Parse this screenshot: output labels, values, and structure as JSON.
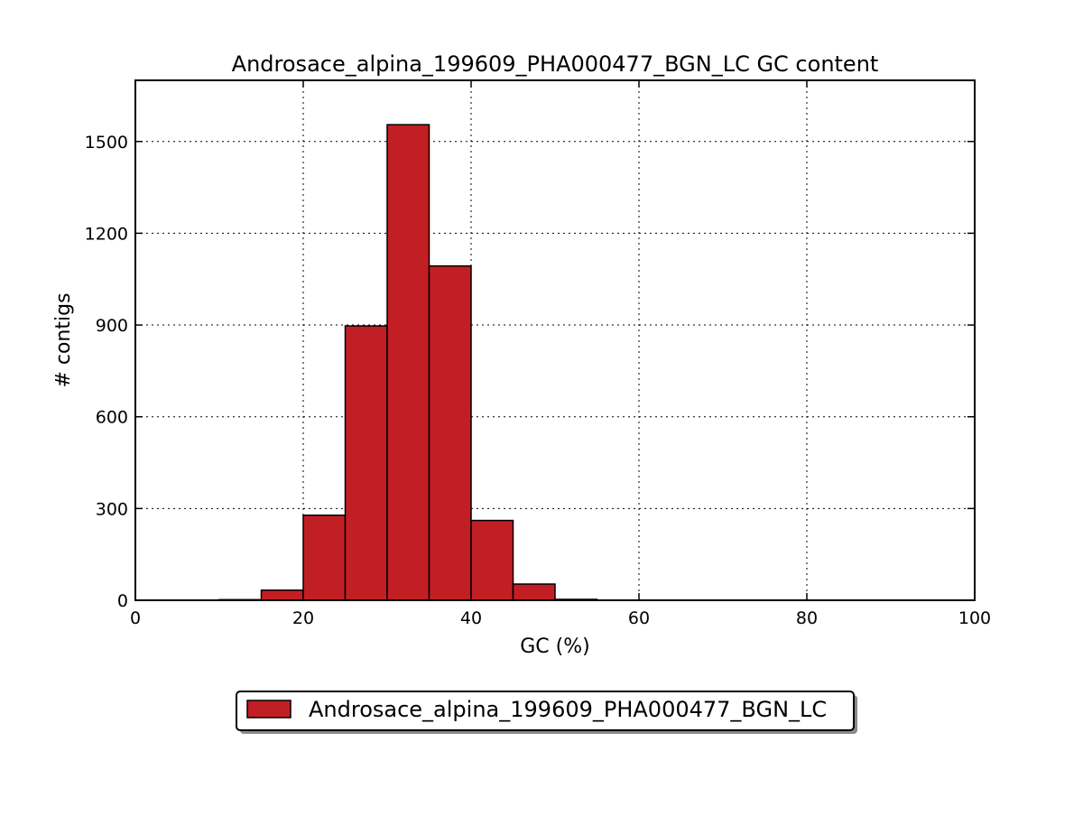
{
  "chart_data": {
    "type": "bar",
    "title": "Androsace_alpina_199609_PHA000477_BGN_LC GC content",
    "xlabel": "GC (%)",
    "ylabel": "# contigs",
    "xlim": [
      0,
      100
    ],
    "ylim": [
      0,
      1700
    ],
    "xticks": [
      0,
      20,
      40,
      60,
      80,
      100
    ],
    "yticks": [
      0,
      300,
      600,
      900,
      1200,
      1500
    ],
    "grid": true,
    "grid_style": "dotted",
    "legend_position": "below",
    "bin_width": 5,
    "bins": [
      {
        "start": 10,
        "end": 15,
        "value": 2
      },
      {
        "start": 15,
        "end": 20,
        "value": 33
      },
      {
        "start": 20,
        "end": 25,
        "value": 278
      },
      {
        "start": 25,
        "end": 30,
        "value": 897
      },
      {
        "start": 30,
        "end": 35,
        "value": 1555
      },
      {
        "start": 35,
        "end": 40,
        "value": 1093
      },
      {
        "start": 40,
        "end": 45,
        "value": 261
      },
      {
        "start": 45,
        "end": 50,
        "value": 53
      },
      {
        "start": 50,
        "end": 55,
        "value": 3
      }
    ],
    "series": [
      {
        "name": "Androsace_alpina_199609_PHA000477_BGN_LC",
        "color": "#c21f24"
      }
    ]
  }
}
